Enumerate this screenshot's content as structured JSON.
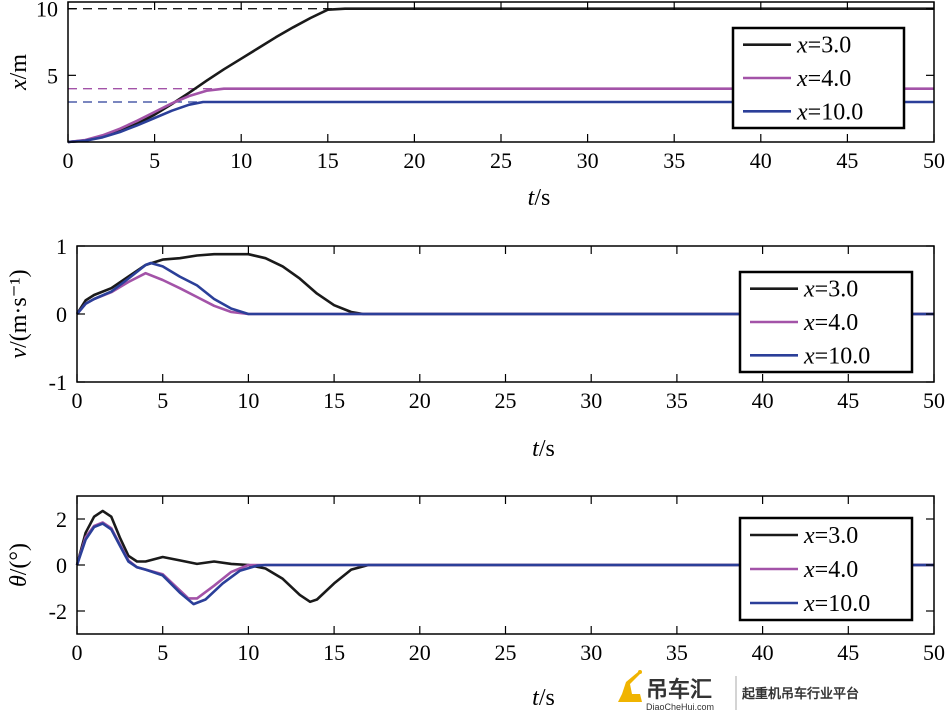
{
  "colors": {
    "x3": "#1a1a1a",
    "x4": "#a353a8",
    "x10": "#2b3f99",
    "axis": "#000000"
  },
  "chart_data": [
    {
      "type": "line",
      "ylabel_var": "x",
      "ylabel_unit": "/m",
      "xlabel_var": "t",
      "xlabel_unit": "/s",
      "xlim": [
        0,
        50
      ],
      "ylim": [
        0,
        10.5
      ],
      "xticks": [
        "0",
        "5",
        "10",
        "15",
        "20",
        "25",
        "30",
        "35",
        "40",
        "45",
        "50"
      ],
      "yticks": [
        "5",
        "10"
      ],
      "grid": false,
      "legend_position": "top-right",
      "reference_lines": [
        {
          "y": 10,
          "color": "x3"
        },
        {
          "y": 4,
          "color": "x4"
        },
        {
          "y": 3,
          "color": "x10"
        }
      ],
      "series": [
        {
          "name": "x=3.0",
          "var": "x",
          "val": "=3.0",
          "color": "x3",
          "x": [
            0,
            1,
            2,
            3,
            4,
            5,
            6,
            7,
            8,
            9,
            10,
            11,
            12,
            13,
            14,
            15,
            16,
            50
          ],
          "y": [
            0,
            0.12,
            0.4,
            0.82,
            1.38,
            2.05,
            2.85,
            3.7,
            4.6,
            5.45,
            6.25,
            7.05,
            7.85,
            8.6,
            9.3,
            9.92,
            10,
            10
          ]
        },
        {
          "name": "x=4.0",
          "var": "x",
          "val": "=4.0",
          "color": "x4",
          "x": [
            0,
            1,
            2,
            3,
            4,
            5,
            6,
            7,
            8,
            9,
            9.5,
            50
          ],
          "y": [
            0,
            0.15,
            0.5,
            1,
            1.6,
            2.25,
            2.9,
            3.45,
            3.85,
            4.0,
            4.0,
            4.0
          ]
        },
        {
          "name": "x=10.0",
          "var": "x",
          "val": "=10.0",
          "color": "x10",
          "x": [
            0,
            1,
            2,
            3,
            4,
            5,
            6,
            7,
            7.8,
            50
          ],
          "y": [
            0,
            0.1,
            0.35,
            0.75,
            1.25,
            1.8,
            2.35,
            2.8,
            3.0,
            3.0
          ]
        }
      ]
    },
    {
      "type": "line",
      "ylabel_var": "v",
      "ylabel_unit": "/(m·s⁻¹)",
      "xlabel_var": "t",
      "xlabel_unit": "/s",
      "xlim": [
        0,
        50
      ],
      "ylim": [
        -1,
        1
      ],
      "xticks": [
        "0",
        "5",
        "10",
        "15",
        "20",
        "25",
        "30",
        "35",
        "40",
        "45",
        "50"
      ],
      "yticks": [
        "-1",
        "0",
        "1"
      ],
      "grid": false,
      "legend_position": "right",
      "series": [
        {
          "name": "x=3.0",
          "var": "x",
          "val": "=3.0",
          "color": "x3",
          "x": [
            0,
            0.5,
            1,
            2,
            3,
            4,
            5,
            6,
            7,
            8,
            9,
            10,
            11,
            12,
            13,
            14,
            15,
            16,
            16.7,
            50
          ],
          "y": [
            0,
            0.2,
            0.28,
            0.38,
            0.55,
            0.72,
            0.8,
            0.82,
            0.86,
            0.88,
            0.88,
            0.88,
            0.82,
            0.7,
            0.52,
            0.3,
            0.13,
            0.03,
            0,
            0
          ]
        },
        {
          "name": "x=4.0",
          "var": "x",
          "val": "=4.0",
          "color": "x4",
          "x": [
            0,
            0.5,
            1,
            2,
            3,
            4,
            5,
            6,
            7,
            8,
            9,
            10,
            50
          ],
          "y": [
            0,
            0.15,
            0.22,
            0.32,
            0.47,
            0.6,
            0.5,
            0.38,
            0.25,
            0.12,
            0.03,
            0,
            0
          ]
        },
        {
          "name": "x=10.0",
          "var": "x",
          "val": "=10.0",
          "color": "x10",
          "x": [
            0,
            0.5,
            1,
            2,
            3,
            4,
            4.3,
            5,
            6,
            7,
            8,
            9,
            10,
            50
          ],
          "y": [
            0,
            0.15,
            0.22,
            0.33,
            0.52,
            0.72,
            0.75,
            0.7,
            0.55,
            0.42,
            0.22,
            0.08,
            0,
            0
          ]
        }
      ]
    },
    {
      "type": "line",
      "ylabel_var": "θ",
      "ylabel_unit": "/(°)",
      "xlabel_var": "t",
      "xlabel_unit": "/s",
      "xlim": [
        0,
        50
      ],
      "ylim": [
        -3,
        3
      ],
      "xticks": [
        "0",
        "5",
        "10",
        "15",
        "20",
        "25",
        "30",
        "35",
        "40",
        "45",
        "50"
      ],
      "yticks": [
        "-2",
        "0",
        "2"
      ],
      "grid": false,
      "legend_position": "right",
      "series": [
        {
          "name": "x=3.0",
          "var": "x",
          "val": "=3.0",
          "color": "x3",
          "x": [
            0,
            0.5,
            1,
            1.5,
            2,
            2.5,
            3,
            3.5,
            4,
            5,
            6,
            7,
            8,
            9,
            10,
            11,
            12,
            13,
            13.6,
            14,
            15,
            16,
            17,
            50
          ],
          "y": [
            0,
            1.4,
            2.1,
            2.35,
            2.1,
            1.2,
            0.4,
            0.15,
            0.15,
            0.35,
            0.2,
            0.05,
            0.15,
            0.05,
            0,
            -0.15,
            -0.6,
            -1.3,
            -1.6,
            -1.5,
            -0.8,
            -0.2,
            0,
            0
          ]
        },
        {
          "name": "x=4.0",
          "var": "x",
          "val": "=4.0",
          "color": "x4",
          "x": [
            0,
            0.5,
            1,
            1.5,
            2,
            2.5,
            3,
            3.5,
            4,
            5,
            6,
            6.5,
            7,
            8,
            9,
            10,
            50
          ],
          "y": [
            0,
            1.2,
            1.7,
            1.85,
            1.6,
            0.9,
            0.2,
            -0.1,
            -0.2,
            -0.4,
            -1.1,
            -1.45,
            -1.45,
            -0.9,
            -0.3,
            0,
            0
          ]
        },
        {
          "name": "x=10.0",
          "var": "x",
          "val": "=10.0",
          "color": "x10",
          "x": [
            0,
            0.5,
            1,
            1.5,
            2,
            2.5,
            3,
            3.5,
            4,
            5,
            6,
            6.8,
            7.5,
            8.5,
            9.5,
            10.5,
            11,
            50
          ],
          "y": [
            0,
            1.1,
            1.65,
            1.8,
            1.55,
            0.85,
            0.15,
            -0.1,
            -0.2,
            -0.45,
            -1.2,
            -1.7,
            -1.5,
            -0.8,
            -0.25,
            -0.03,
            0,
            0
          ]
        }
      ]
    }
  ],
  "watermark": {
    "name": "吊车汇",
    "domain": "DiaoCheHui.com",
    "slogan": "起重机吊车行业平台"
  }
}
